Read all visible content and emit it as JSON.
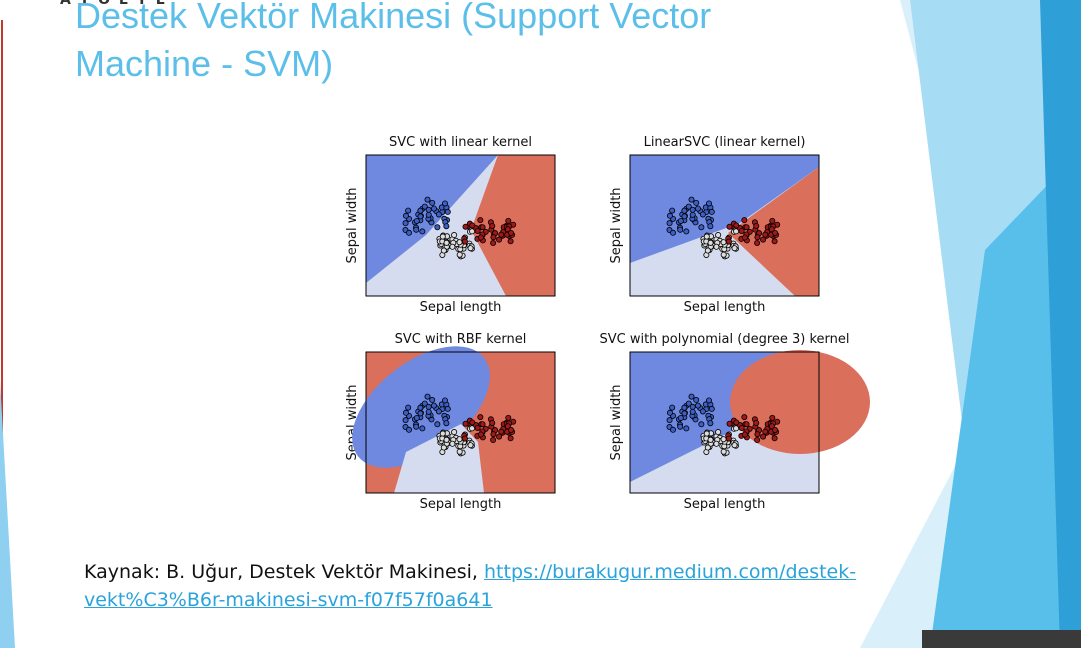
{
  "header": {
    "logo": "A T Ö L Y E",
    "title": "Destek Vektör Makinesi (Support Vector Machine - SVM)"
  },
  "plots": [
    {
      "title": "SVC with linear kernel",
      "xlabel": "Sepal length",
      "ylabel": "Sepal width"
    },
    {
      "title": "LinearSVC (linear kernel)",
      "xlabel": "Sepal length",
      "ylabel": "Sepal width"
    },
    {
      "title": "SVC with RBF kernel",
      "xlabel": "Sepal length",
      "ylabel": "Sepal width"
    },
    {
      "title": "SVC with polynomial (degree 3) kernel",
      "xlabel": "Sepal length",
      "ylabel": "Sepal width"
    }
  ],
  "source": {
    "text": "Kaynak: B. Uğur, Destek Vektör Makinesi,",
    "link": "https://burakugur.medium.com/destek-vekt%C3%B6r-makinesi-svm-f07f57f0a641"
  }
}
